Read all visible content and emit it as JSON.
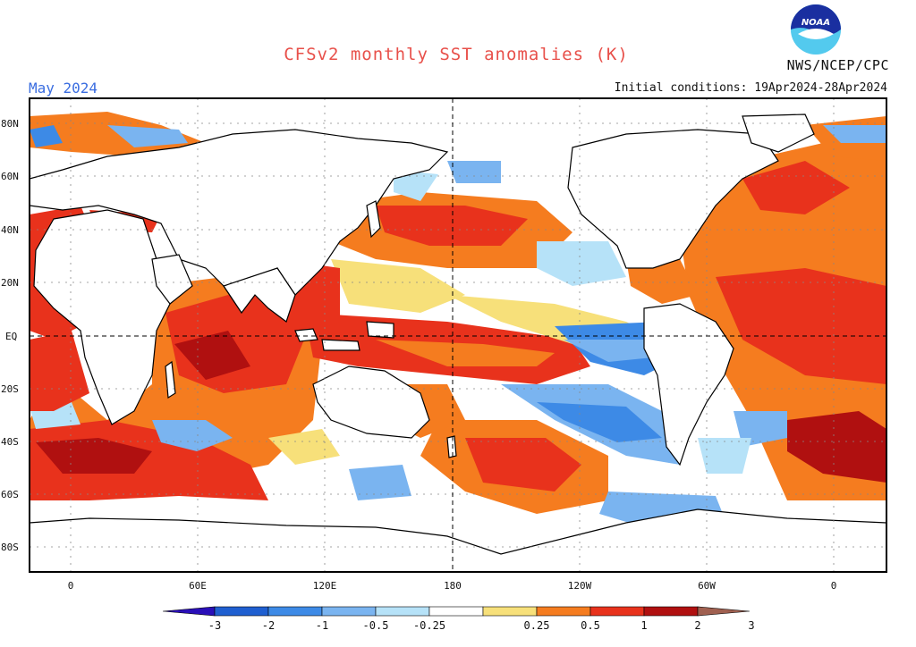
{
  "header": {
    "title": "CFSv2 monthly SST anomalies (K)",
    "month": "May 2024",
    "initial_conditions": "Initial conditions: 19Apr2024-28Apr2024",
    "agency": "NWS/NCEP/CPC",
    "logo_text": "NOAA"
  },
  "axes": {
    "lat_labels": [
      "80N",
      "60N",
      "40N",
      "20N",
      "EQ",
      "20S",
      "40S",
      "60S",
      "80S"
    ],
    "lon_labels": [
      "0",
      "60E",
      "120E",
      "180",
      "120W",
      "60W",
      "0"
    ]
  },
  "colorbar": {
    "tick_labels": [
      "-3",
      "-2",
      "-1",
      "-0.5",
      "-0.25",
      "0.25",
      "0.5",
      "1",
      "2",
      "3"
    ],
    "colors": [
      "#2a0fb8",
      "#1f5fd0",
      "#3d8ae6",
      "#7ab4f0",
      "#b6e2f8",
      "#ffffff",
      "#f7e07a",
      "#f57c1f",
      "#e8321c",
      "#b01010",
      "#a06050"
    ]
  },
  "colors": {
    "title": "#e8504a",
    "month": "#3a6de0",
    "land": "#ffffff",
    "coast": "#000000"
  }
}
